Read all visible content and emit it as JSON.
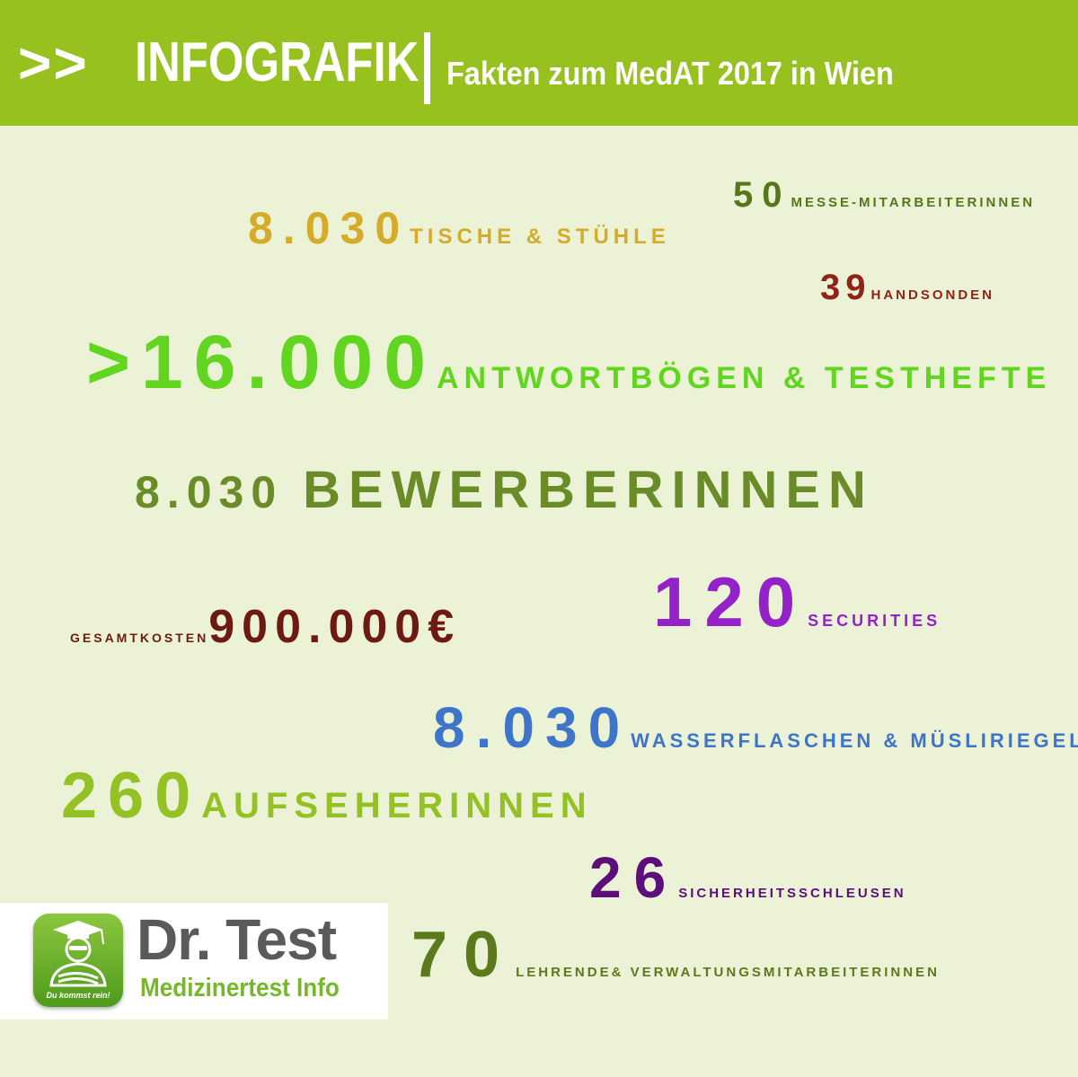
{
  "header": {
    "arrows": ">>",
    "title": "INFOGRAFIK",
    "subtitle": "Fakten zum MedAT 2017 in Wien"
  },
  "facts": {
    "messe": {
      "number": "50",
      "label": "MESSE-MITARBEITERINNEN"
    },
    "tische": {
      "number": "8.030",
      "label": "TISCHE & STÜHLE"
    },
    "hand": {
      "number": "39",
      "label": "HANDSONDEN"
    },
    "antwort": {
      "number": ">16.000",
      "label": "ANTWORTBÖGEN & TESTHEFTE"
    },
    "bewerber": {
      "number": "8.030",
      "label": "BEWERBERINNEN"
    },
    "kosten": {
      "label": "GESAMTKOSTEN",
      "number": "900.000€"
    },
    "secur": {
      "number": "120",
      "label": "SECURITIES"
    },
    "wasser": {
      "number": "8.030",
      "label": "WASSERFLASCHEN & MÜSLIRIEGEL"
    },
    "aufseher": {
      "number": "260",
      "label": "AUFSEHERINNEN"
    },
    "schleusen": {
      "number": "26",
      "label": "SICHERHEITSSCHLEUSEN"
    },
    "lehrende": {
      "number": "70",
      "label": "LEHRENDE& VERWALTUNGSMITARBEITERINNEN"
    }
  },
  "logo": {
    "icon_name": "graduate-mascot-icon",
    "icon_text": "Du kommst rein!",
    "brand": "Dr. Test",
    "tagline": "Medizinertest Info"
  },
  "colors": {
    "header": "#96c11f",
    "background": "#ebf2d6"
  }
}
